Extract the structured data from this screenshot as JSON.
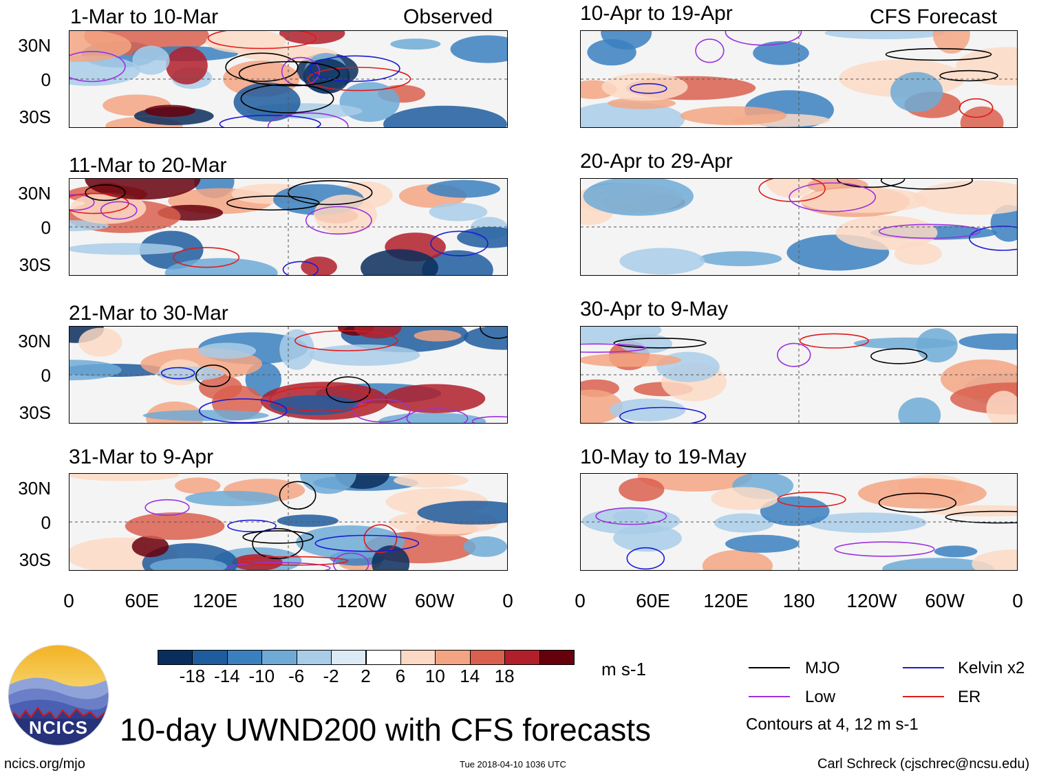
{
  "observed_label": "Observed",
  "forecast_label": "CFS Forecast",
  "y_ticks": [
    "30N",
    "0",
    "30S"
  ],
  "x_ticks": [
    "0",
    "60E",
    "120E",
    "180",
    "120W",
    "60W",
    "0"
  ],
  "panels_observed": [
    {
      "title": "1-Mar to 10-Mar"
    },
    {
      "title": "11-Mar to 20-Mar"
    },
    {
      "title": "21-Mar to 30-Mar"
    },
    {
      "title": "31-Mar to 9-Apr"
    }
  ],
  "panels_forecast": [
    {
      "title": "10-Apr to 19-Apr"
    },
    {
      "title": "20-Apr to 29-Apr"
    },
    {
      "title": "30-Apr to 9-May"
    },
    {
      "title": "10-May to 19-May"
    }
  ],
  "colorbar": {
    "tick_labels": [
      "-18",
      "-14",
      "-10",
      "-6",
      "-2",
      "2",
      "6",
      "10",
      "14",
      "18"
    ],
    "colors": [
      "#0a2e5c",
      "#1f5c9e",
      "#3a80bf",
      "#6faad6",
      "#a9cde8",
      "#dbeaf4",
      "#ffffff",
      "#fbd9c4",
      "#f3a583",
      "#d9604d",
      "#b01f2a",
      "#67000d"
    ],
    "units": "m s-1"
  },
  "legend": {
    "items": [
      {
        "label": "MJO",
        "color": "#000000"
      },
      {
        "label": "Kelvin x2",
        "color": "#1a1ad6"
      },
      {
        "label": "Low",
        "color": "#9b30e0"
      },
      {
        "label": "ER",
        "color": "#e01a1a"
      }
    ],
    "note": "Contours at 4, 12 m s-1"
  },
  "logo_text": "NCICS",
  "main_title": "10-day UWND200 with CFS forecasts",
  "footer": {
    "left": "ncics.org/mjo",
    "center": "Tue 2018-04-10 1036 UTC",
    "right": "Carl Schreck (cjschrec@ncsu.edu)"
  },
  "chart_data": {
    "type": "heatmap",
    "variable": "200-hPa zonal wind anomaly, 10-day mean",
    "units": "m s-1",
    "lon_range": [
      0,
      360
    ],
    "lat_range": [
      -40,
      40
    ],
    "color_levels": [
      -18,
      -14,
      -10,
      -6,
      -2,
      2,
      6,
      10,
      14,
      18
    ],
    "contour_levels": [
      4,
      12
    ],
    "panels": [
      {
        "title": "1-Mar to 10-Mar",
        "source": "Observed"
      },
      {
        "title": "11-Mar to 20-Mar",
        "source": "Observed"
      },
      {
        "title": "21-Mar to 30-Mar",
        "source": "Observed"
      },
      {
        "title": "31-Mar to 9-Apr",
        "source": "Observed"
      },
      {
        "title": "10-Apr to 19-Apr",
        "source": "CFS Forecast"
      },
      {
        "title": "20-Apr to 29-Apr",
        "source": "CFS Forecast"
      },
      {
        "title": "30-Apr to 9-May",
        "source": "CFS Forecast"
      },
      {
        "title": "10-May to 19-May",
        "source": "CFS Forecast"
      }
    ]
  }
}
